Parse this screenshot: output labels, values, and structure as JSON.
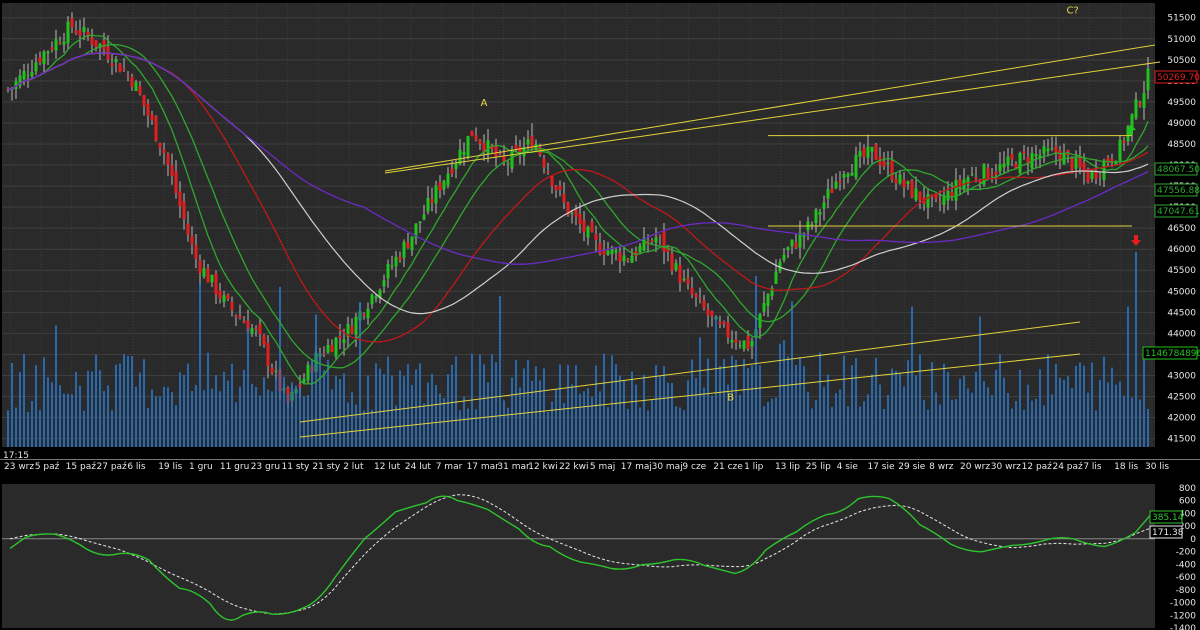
{
  "time_label": "17:15",
  "colors": {
    "background": "#000000",
    "panel": "#2a2a2a",
    "grid": "#3f3f3f",
    "candle_up": "#22c21e",
    "candle_down": "#e02020",
    "volume": "#2a73c4",
    "ma_white": "#cfcfcf",
    "ma_red": "#c01818",
    "ma_green": "#2ea82e",
    "ma_purple": "#6a2bc4",
    "trendline": "#e3d33a",
    "osc_line": "#2ec42e",
    "osc_signal": "#e6e6e6"
  },
  "chart_data": [
    {
      "type": "candlestick",
      "title": "",
      "price_axis_ticks": [
        "51500",
        "51000",
        "50500",
        "50000",
        "49500",
        "49000",
        "48500",
        "48000",
        "47500",
        "47000",
        "46500",
        "46000",
        "45500",
        "45000",
        "44500",
        "44000",
        "43500",
        "43000",
        "42500",
        "42000",
        "41500"
      ],
      "price_range": [
        41300,
        51850
      ],
      "date_labels": [
        "23 wrz",
        "5 paź",
        "15 paź",
        "27 paź",
        "6 lis",
        "19 lis",
        "1 gru",
        "11 gru",
        "23 gru",
        "11 sty",
        "21 sty",
        "2 lut",
        "12 lut",
        "24 lut",
        "7 mar",
        "17 mar",
        "31 mar",
        "12 kwi",
        "22 kwi",
        "5 maj",
        "17 maj",
        "30 maj",
        "9 cze",
        "21 cze",
        "1 lip",
        "13 lip",
        "25 lip",
        "4 sie",
        "17 sie",
        "29 sie",
        "8 wrz",
        "20 wrz",
        "30 wrz",
        "12 paź",
        "24 paź",
        "7 lis",
        "18 lis",
        "30 lis"
      ],
      "price_path": [
        {
          "date": "23 wrz",
          "close": 49800
        },
        {
          "date": "5 paź",
          "close": 50600
        },
        {
          "date": "15 paź",
          "close": 51300
        },
        {
          "date": "27 paź",
          "close": 50800
        },
        {
          "date": "6 lis",
          "close": 50000
        },
        {
          "date": "19 lis",
          "close": 48300
        },
        {
          "date": "1 gru",
          "close": 45800
        },
        {
          "date": "11 gru",
          "close": 44700
        },
        {
          "date": "23 gru",
          "close": 44000
        },
        {
          "date": "11 sty",
          "close": 42300
        },
        {
          "date": "21 sty",
          "close": 43500
        },
        {
          "date": "2 lut",
          "close": 44100
        },
        {
          "date": "12 lut",
          "close": 45200
        },
        {
          "date": "24 lut",
          "close": 46300
        },
        {
          "date": "7 mar",
          "close": 47600
        },
        {
          "date": "17 mar",
          "close": 48800
        },
        {
          "date": "31 mar",
          "close": 48000
        },
        {
          "date": "12 kwi",
          "close": 48600
        },
        {
          "date": "22 kwi",
          "close": 47000
        },
        {
          "date": "5 maj",
          "close": 46100
        },
        {
          "date": "17 maj",
          "close": 45800
        },
        {
          "date": "30 maj",
          "close": 46300
        },
        {
          "date": "9 cze",
          "close": 45000
        },
        {
          "date": "21 cze",
          "close": 44100
        },
        {
          "date": "1 lip",
          "close": 43700
        },
        {
          "date": "13 lip",
          "close": 45800
        },
        {
          "date": "25 lip",
          "close": 46600
        },
        {
          "date": "4 sie",
          "close": 47900
        },
        {
          "date": "17 sie",
          "close": 48300
        },
        {
          "date": "29 sie",
          "close": 47500
        },
        {
          "date": "8 wrz",
          "close": 47000
        },
        {
          "date": "20 wrz",
          "close": 47700
        },
        {
          "date": "30 wrz",
          "close": 47900
        },
        {
          "date": "12 paź",
          "close": 48200
        },
        {
          "date": "24 paź",
          "close": 48300
        },
        {
          "date": "7 lis",
          "close": 47700
        },
        {
          "date": "18 lis",
          "close": 48400
        },
        {
          "date": "30 lis",
          "close": 50270
        }
      ],
      "last_values": [
        {
          "label": "50269.70",
          "color": "#e02020"
        },
        {
          "label": "48067.50",
          "color": "#2ea82e"
        },
        {
          "label": "47556.88",
          "color": "#2ea82e"
        },
        {
          "label": "47047.61",
          "color": "#2ea82e"
        }
      ],
      "volume_label": {
        "label": "1146784896",
        "color": "#22c21e"
      },
      "annotations": [
        {
          "text": "A",
          "date": "17 mar",
          "price": 49400
        },
        {
          "text": "B",
          "date": "21 cze",
          "price": 42400
        },
        {
          "text": "C?",
          "date": "24 paź",
          "price": 51600
        }
      ],
      "support_resistance": [
        48700,
        46550
      ]
    },
    {
      "type": "line",
      "title": "",
      "y_ticks": [
        "800",
        "600",
        "400",
        "200",
        "0",
        "-200",
        "-400",
        "-600",
        "-800",
        "-1000",
        "-1200",
        "-1400"
      ],
      "ylim": [
        -1400,
        860
      ],
      "series": [
        {
          "values": [
            -150,
            100,
            0,
            -300,
            -200,
            -600,
            -800,
            -1400,
            -1100,
            -1200,
            -1000,
            -300,
            200,
            500,
            750,
            550,
            300,
            -100,
            -300,
            -400,
            -500,
            -400,
            -300,
            -480,
            -500,
            0,
            300,
            400,
            700,
            500,
            100,
            -200,
            -150,
            -100,
            50,
            -100,
            -50,
            385
          ]
        },
        {
          "values": [
            0,
            80,
            50,
            -100,
            -250,
            -500,
            -700,
            -1000,
            -1150,
            -1180,
            -1050,
            -500,
            0,
            350,
            650,
            700,
            450,
            100,
            -100,
            -300,
            -400,
            -450,
            -400,
            -430,
            -450,
            -200,
            150,
            300,
            500,
            550,
            300,
            0,
            -120,
            -130,
            -60,
            -80,
            -40,
            171
          ]
        }
      ],
      "last_values": [
        {
          "label": "385.14",
          "color": "#2ec42e"
        },
        {
          "label": "171.38",
          "color": "#e6e6e6"
        }
      ]
    }
  ]
}
